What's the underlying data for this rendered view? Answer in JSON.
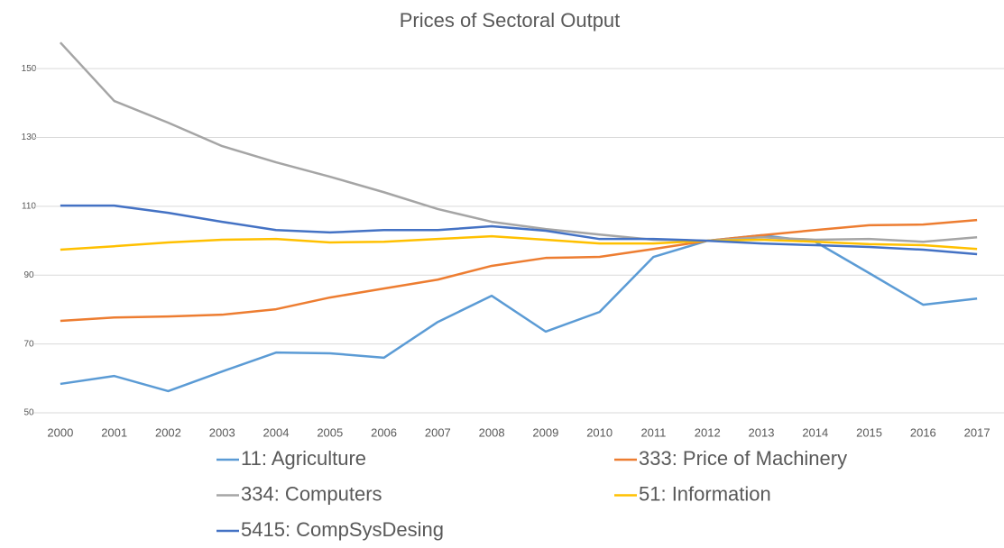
{
  "chart_data": {
    "type": "line",
    "title": "Prices of Sectoral Output",
    "categories": [
      "2000",
      "2001",
      "2002",
      "2003",
      "2004",
      "2005",
      "2006",
      "2007",
      "2008",
      "2009",
      "2010",
      "2011",
      "2012",
      "2013",
      "2014",
      "2015",
      "2016",
      "2017"
    ],
    "ylim": [
      50,
      160
    ],
    "yticks": [
      50,
      70,
      90,
      110,
      130,
      150
    ],
    "grid": true,
    "legend": "bottom",
    "series": [
      {
        "name": "11: Agriculture",
        "color": "#5b9bd5",
        "values": [
          58.4,
          60.7,
          56.3,
          62,
          67.5,
          67.3,
          66,
          76.4,
          84,
          73.6,
          79.3,
          95.3,
          100,
          101.6,
          99.7,
          90.6,
          81.4,
          83.2
        ]
      },
      {
        "name": "333: Price of Machinery",
        "color": "#ed7d31",
        "values": [
          76.7,
          77.7,
          78,
          78.5,
          80.1,
          83.5,
          86.1,
          88.7,
          92.7,
          95,
          95.3,
          97.6,
          100,
          101.6,
          103.1,
          104.5,
          104.7,
          106
        ]
      },
      {
        "name": "334: Computers",
        "color": "#a5a5a5",
        "values": [
          157.6,
          140.6,
          134.3,
          127.5,
          122.8,
          118.6,
          114.1,
          109.2,
          105.5,
          103.4,
          101.8,
          100.3,
          100,
          101,
          100.3,
          100.5,
          99.7,
          101
        ]
      },
      {
        "name": "51: Information",
        "color": "#ffc000",
        "values": [
          97.4,
          98.4,
          99.5,
          100.3,
          100.5,
          99.5,
          99.7,
          100.5,
          101.3,
          100.3,
          99.2,
          99.2,
          100,
          100.3,
          99.7,
          99,
          98.7,
          97.6
        ]
      },
      {
        "name": "5415: CompSysDesing",
        "color": "#4472c4",
        "values": [
          110.2,
          110.2,
          108.1,
          105.5,
          103.1,
          102.4,
          103.1,
          103.1,
          104.2,
          102.9,
          100.5,
          100.5,
          100,
          99.2,
          98.7,
          98.2,
          97.4,
          96.1
        ]
      }
    ]
  }
}
